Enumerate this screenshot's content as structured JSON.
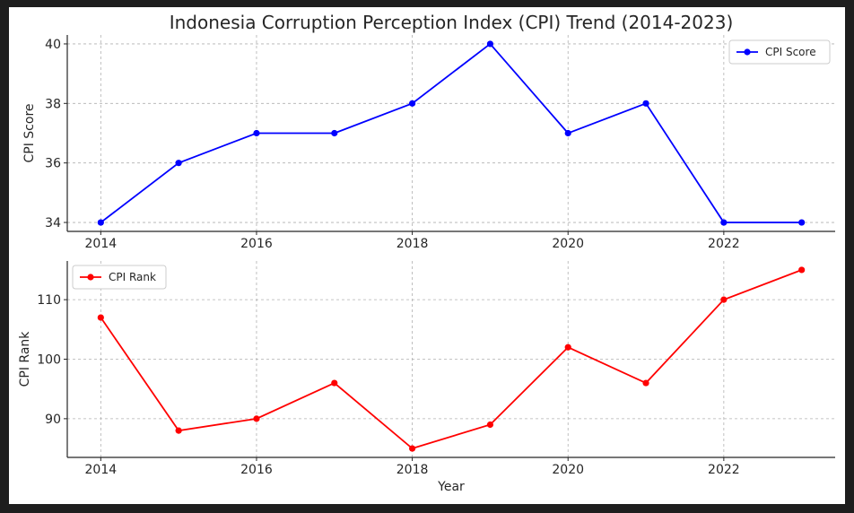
{
  "chart_data": [
    {
      "type": "line",
      "title": "Indonesia Corruption Perception Index (CPI) Trend (2014-2023)",
      "xlabel": "",
      "ylabel": "CPI Score",
      "x": [
        2014,
        2015,
        2016,
        2017,
        2018,
        2019,
        2020,
        2021,
        2022,
        2023
      ],
      "xticks": [
        2014,
        2016,
        2018,
        2020,
        2022
      ],
      "yticks": [
        34,
        36,
        38,
        40
      ],
      "ylim": [
        33.7,
        40.3
      ],
      "xlim": [
        2013.57,
        2023.43
      ],
      "grid": true,
      "legend_position": "upper right",
      "series": [
        {
          "name": "CPI Score",
          "color": "#0000ff",
          "marker": "circle",
          "values": [
            34,
            36,
            37,
            37,
            38,
            40,
            37,
            38,
            34,
            34
          ]
        }
      ]
    },
    {
      "type": "line",
      "title": "",
      "xlabel": "Year",
      "ylabel": "CPI Rank",
      "x": [
        2014,
        2015,
        2016,
        2017,
        2018,
        2019,
        2020,
        2021,
        2022,
        2023
      ],
      "xticks": [
        2014,
        2016,
        2018,
        2020,
        2022
      ],
      "yticks": [
        90,
        100,
        110
      ],
      "ylim": [
        83.5,
        116.5
      ],
      "xlim": [
        2013.57,
        2023.43
      ],
      "grid": true,
      "legend_position": "upper left",
      "series": [
        {
          "name": "CPI Rank",
          "color": "#ff0000",
          "marker": "circle",
          "values": [
            107,
            88,
            90,
            96,
            85,
            89,
            102,
            96,
            110,
            115
          ]
        }
      ]
    }
  ]
}
